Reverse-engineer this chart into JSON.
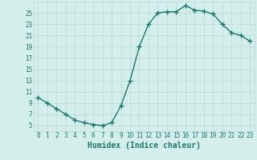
{
  "xlabel": "Humidex (Indice chaleur)",
  "x": [
    0,
    1,
    2,
    3,
    4,
    5,
    6,
    7,
    8,
    9,
    10,
    11,
    12,
    13,
    14,
    15,
    16,
    17,
    18,
    19,
    20,
    21,
    22,
    23
  ],
  "y": [
    10,
    9,
    8,
    7,
    6,
    5.5,
    5.2,
    5.0,
    5.5,
    8.5,
    13,
    19,
    23,
    25,
    25.2,
    25.2,
    26.3,
    25.5,
    25.3,
    24.8,
    23,
    21.5,
    21,
    20
  ],
  "line_color": "#1a7a6e",
  "bg_color": "#d4eeeb",
  "grid_color": "#b8d8d4",
  "tick_color": "#1a7a6e",
  "label_color": "#1a7a6e",
  "ylim": [
    4,
    27
  ],
  "yticks": [
    5,
    7,
    9,
    11,
    13,
    15,
    17,
    19,
    21,
    23,
    25
  ],
  "marker": "+",
  "markersize": 4,
  "linewidth": 1.0,
  "tick_fontsize": 5.5,
  "xlabel_fontsize": 7.0
}
